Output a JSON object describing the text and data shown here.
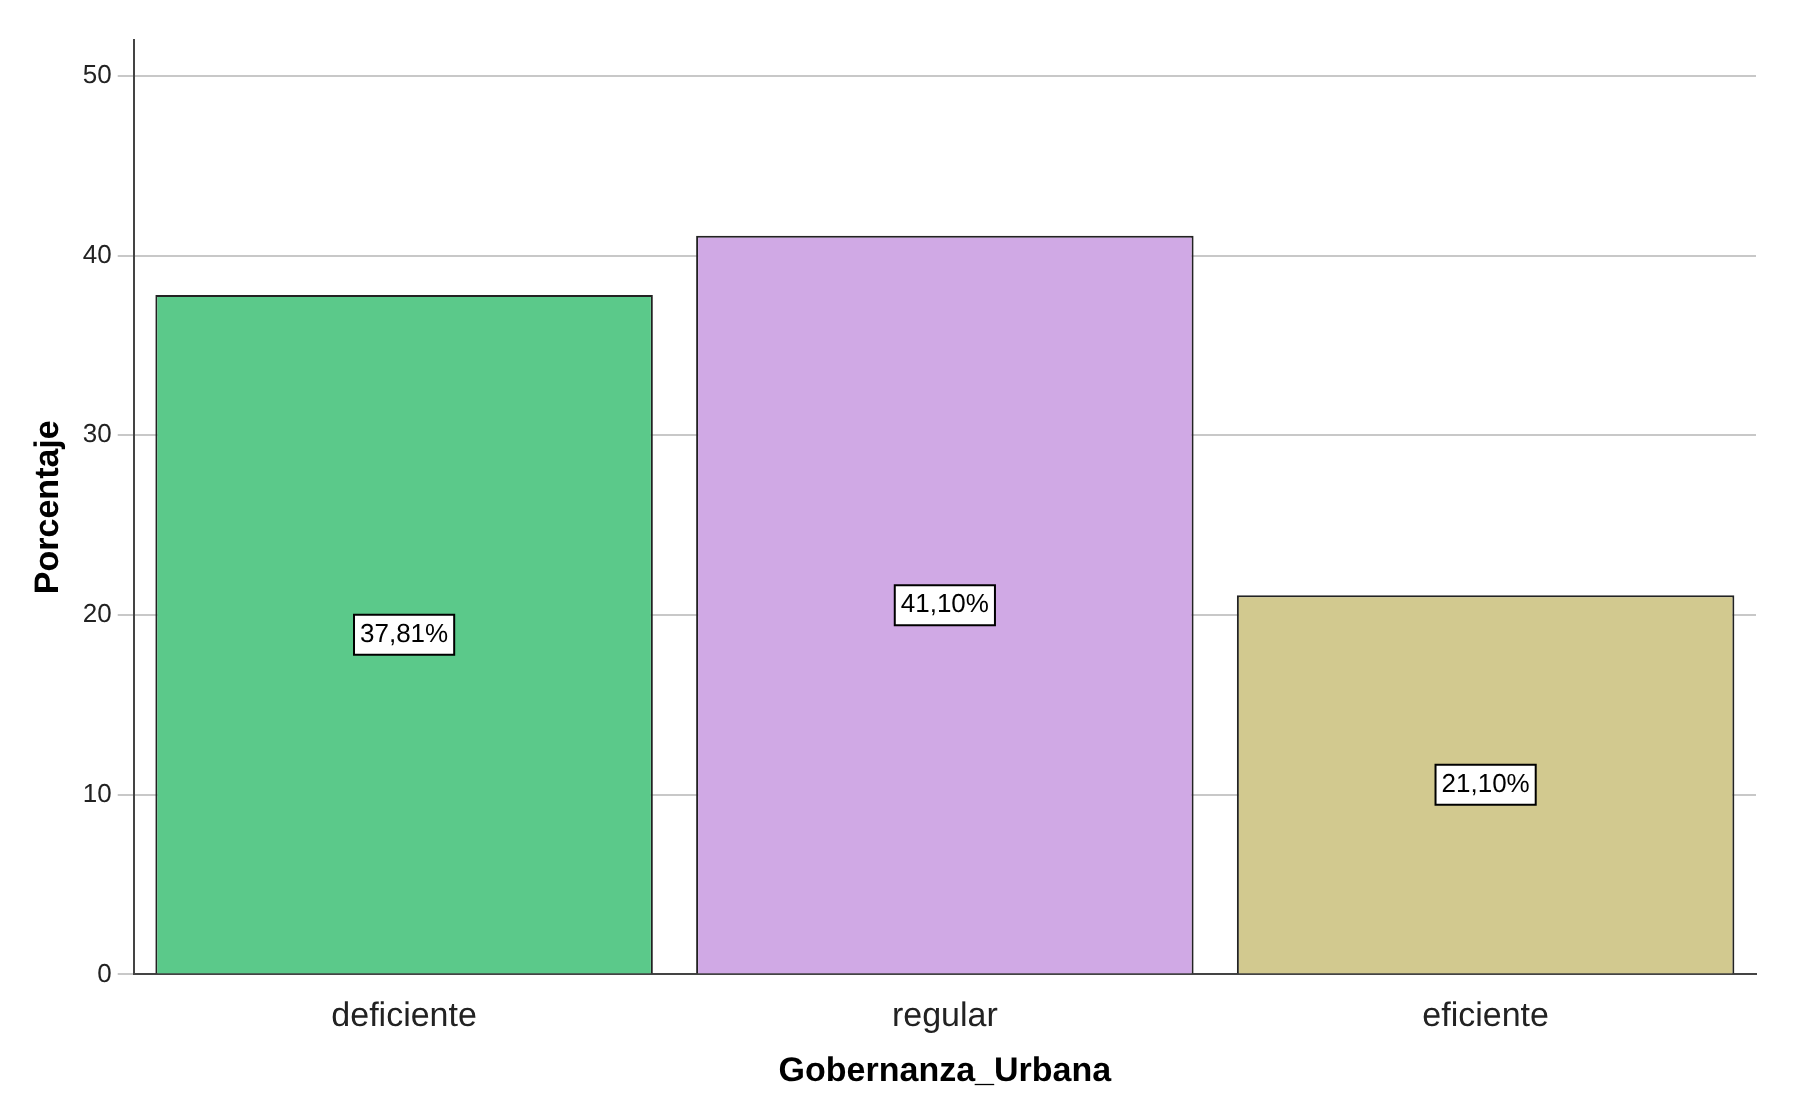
{
  "chart_data": {
    "type": "bar",
    "xlabel": "Gobernanza_Urbana",
    "ylabel": "Porcentaje",
    "categories": [
      "deficiente",
      "regular",
      "eficiente"
    ],
    "values": [
      37.81,
      41.1,
      21.1
    ],
    "value_labels": [
      "37,81%",
      "41,10%",
      "21,10%"
    ],
    "colors": [
      "#5bc98a",
      "#d0a9e5",
      "#d2c98f"
    ],
    "ylim": [
      0,
      52
    ],
    "yticks": [
      0,
      10,
      20,
      30,
      40,
      50
    ],
    "grid": "y",
    "legend": false
  }
}
